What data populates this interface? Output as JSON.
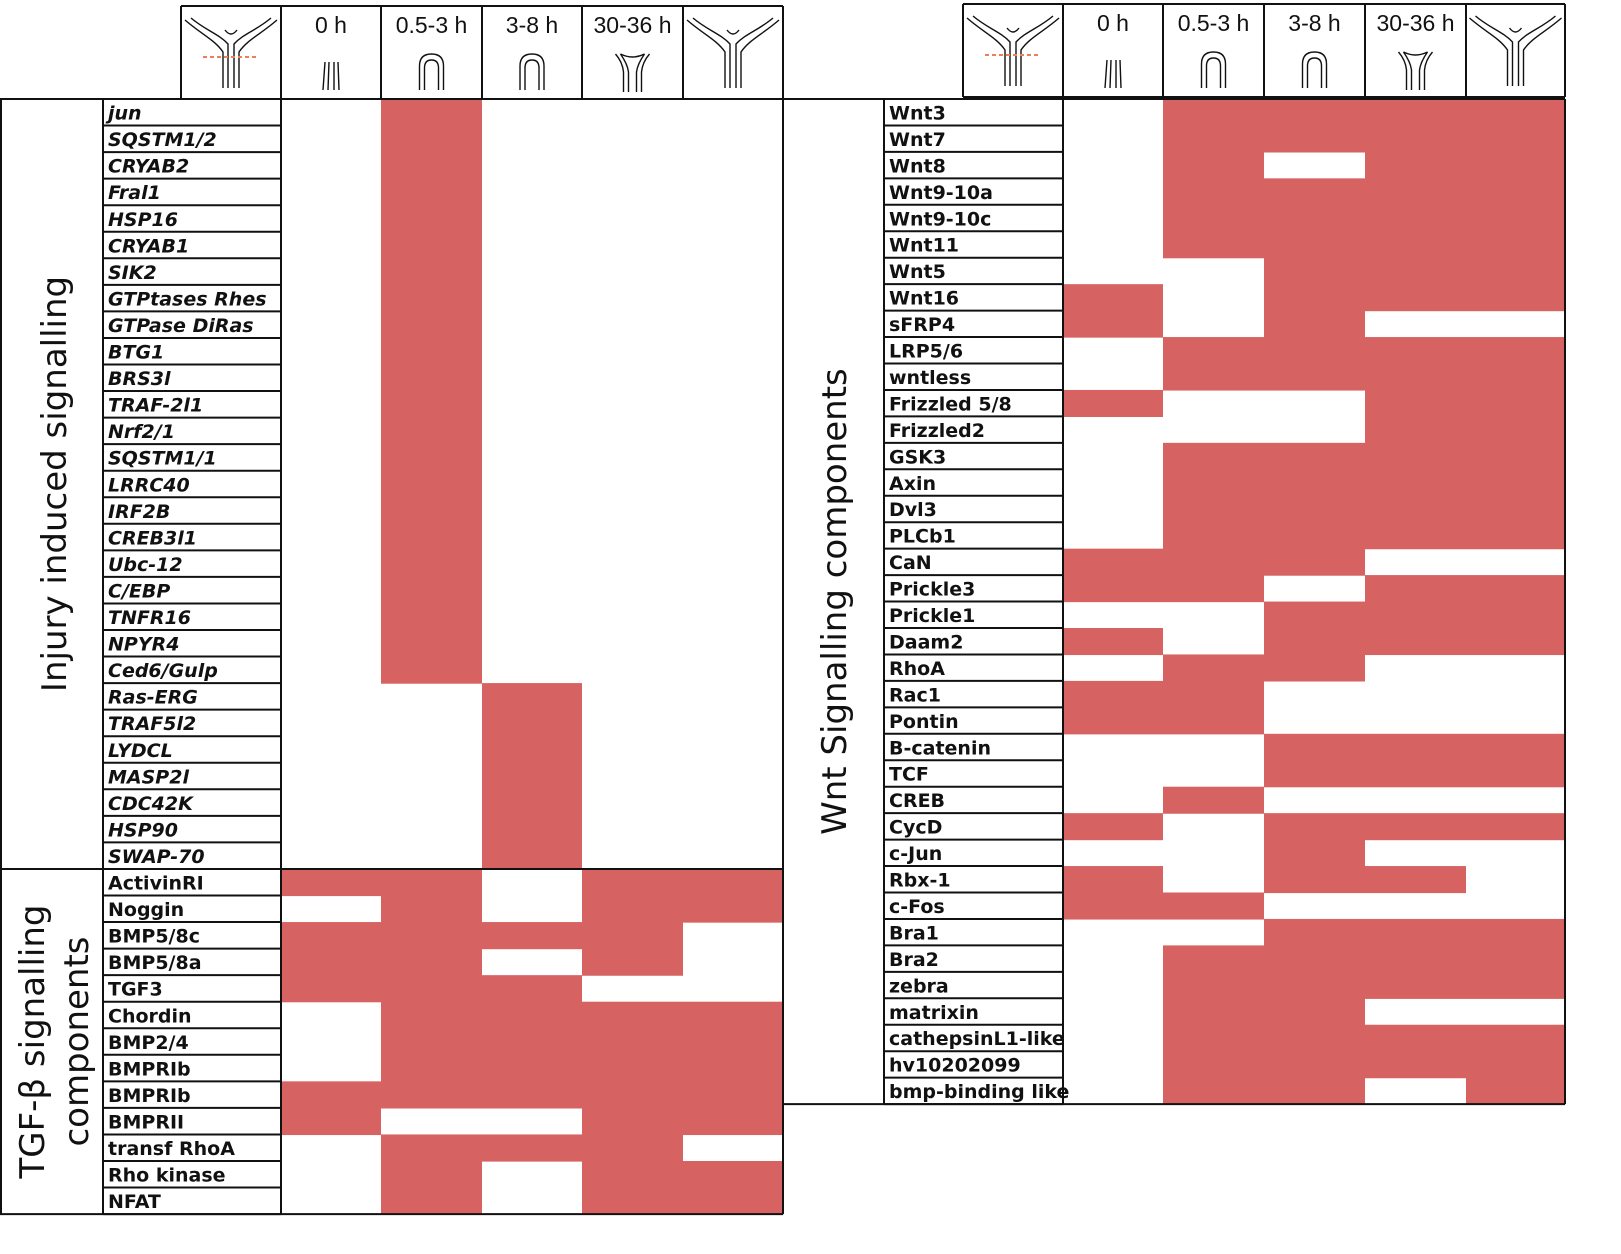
{
  "header": {
    "time_labels": [
      "0 h",
      "0.5-3 h",
      "3-8 h",
      "30-36 h"
    ],
    "icons": [
      "hydra-cut-icon",
      "stalk-0h-icon",
      "healing-tip-icon",
      "tip-regrowth-icon",
      "tentacle-bud-icon",
      "regenerated-hydra-icon"
    ]
  },
  "colors": {
    "expressed": "#d66262",
    "grid": "#111111",
    "cut_line": "#ee7d5a"
  },
  "chart_data": {
    "type": "heatmap",
    "columns": [
      "0 h",
      "0.5-3 h",
      "3-8 h",
      "30-36 h",
      "regenerated"
    ],
    "left_panel": {
      "sections": [
        {
          "title": "Injury induced signalling",
          "italic": true,
          "rows": [
            {
              "gene": "jun",
              "on": [
                0,
                1,
                0,
                0,
                0
              ]
            },
            {
              "gene": "SQSTM1/2",
              "on": [
                0,
                1,
                0,
                0,
                0
              ]
            },
            {
              "gene": "CRYAB2",
              "on": [
                0,
                1,
                0,
                0,
                0
              ]
            },
            {
              "gene": "Fral1",
              "on": [
                0,
                1,
                0,
                0,
                0
              ]
            },
            {
              "gene": "HSP16",
              "on": [
                0,
                1,
                0,
                0,
                0
              ]
            },
            {
              "gene": "CRYAB1",
              "on": [
                0,
                1,
                0,
                0,
                0
              ]
            },
            {
              "gene": "SIK2",
              "on": [
                0,
                1,
                0,
                0,
                0
              ]
            },
            {
              "gene": "GTPtases Rhes",
              "on": [
                0,
                1,
                0,
                0,
                0
              ]
            },
            {
              "gene": "GTPase DiRas",
              "on": [
                0,
                1,
                0,
                0,
                0
              ]
            },
            {
              "gene": "BTG1",
              "on": [
                0,
                1,
                0,
                0,
                0
              ]
            },
            {
              "gene": "BRS3l",
              "on": [
                0,
                1,
                0,
                0,
                0
              ]
            },
            {
              "gene": "TRAF-2l1",
              "on": [
                0,
                1,
                0,
                0,
                0
              ]
            },
            {
              "gene": "Nrf2/1",
              "on": [
                0,
                1,
                0,
                0,
                0
              ]
            },
            {
              "gene": "SQSTM1/1",
              "on": [
                0,
                1,
                0,
                0,
                0
              ]
            },
            {
              "gene": "LRRC40",
              "on": [
                0,
                1,
                0,
                0,
                0
              ]
            },
            {
              "gene": "IRF2B",
              "on": [
                0,
                1,
                0,
                0,
                0
              ]
            },
            {
              "gene": "CREB3l1",
              "on": [
                0,
                1,
                0,
                0,
                0
              ]
            },
            {
              "gene": "Ubc-12",
              "on": [
                0,
                1,
                0,
                0,
                0
              ]
            },
            {
              "gene": "C/EBP",
              "on": [
                0,
                1,
                0,
                0,
                0
              ]
            },
            {
              "gene": "TNFR16",
              "on": [
                0,
                1,
                0,
                0,
                0
              ]
            },
            {
              "gene": "NPYR4",
              "on": [
                0,
                1,
                0,
                0,
                0
              ]
            },
            {
              "gene": "Ced6/Gulp",
              "on": [
                0,
                1,
                0,
                0,
                0
              ]
            },
            {
              "gene": "Ras-ERG",
              "on": [
                0,
                0,
                1,
                0,
                0
              ]
            },
            {
              "gene": "TRAF5l2",
              "on": [
                0,
                0,
                1,
                0,
                0
              ]
            },
            {
              "gene": "LYDCL",
              "on": [
                0,
                0,
                1,
                0,
                0
              ]
            },
            {
              "gene": "MASP2l",
              "on": [
                0,
                0,
                1,
                0,
                0
              ]
            },
            {
              "gene": "CDC42K",
              "on": [
                0,
                0,
                1,
                0,
                0
              ]
            },
            {
              "gene": "HSP90",
              "on": [
                0,
                0,
                1,
                0,
                0
              ]
            },
            {
              "gene": "SWAP-70",
              "on": [
                0,
                0,
                1,
                0,
                0
              ]
            }
          ]
        },
        {
          "title_lines": [
            "TGF-β signalling",
            "components"
          ],
          "italic": false,
          "rows": [
            {
              "gene": "ActivinRI",
              "on": [
                1,
                1,
                0,
                1,
                1
              ]
            },
            {
              "gene": "Noggin",
              "on": [
                0,
                1,
                0,
                1,
                1
              ]
            },
            {
              "gene": "BMP5/8c",
              "on": [
                1,
                1,
                1,
                1,
                0
              ]
            },
            {
              "gene": "BMP5/8a",
              "on": [
                1,
                1,
                0,
                1,
                0
              ]
            },
            {
              "gene": "TGF3",
              "on": [
                1,
                1,
                1,
                0,
                0
              ]
            },
            {
              "gene": "Chordin",
              "on": [
                0,
                1,
                1,
                1,
                1
              ]
            },
            {
              "gene": "BMP2/4",
              "on": [
                0,
                1,
                1,
                1,
                1
              ]
            },
            {
              "gene": "BMPRIb",
              "on": [
                0,
                1,
                1,
                1,
                1
              ]
            },
            {
              "gene": "BMPRIb",
              "on": [
                1,
                1,
                1,
                1,
                1
              ]
            },
            {
              "gene": "BMPRII",
              "on": [
                1,
                0,
                0,
                1,
                1
              ]
            },
            {
              "gene": "transf RhoA",
              "on": [
                0,
                1,
                1,
                1,
                0
              ]
            },
            {
              "gene": "Rho kinase",
              "on": [
                0,
                1,
                0,
                1,
                1
              ]
            },
            {
              "gene": "NFAT",
              "on": [
                0,
                1,
                0,
                1,
                1
              ]
            }
          ]
        }
      ]
    },
    "right_panel": {
      "title": "Wnt Signalling components",
      "rows": [
        {
          "gene": "Wnt3",
          "on": [
            0,
            1,
            1,
            1,
            1
          ]
        },
        {
          "gene": "Wnt7",
          "on": [
            0,
            1,
            1,
            1,
            1
          ]
        },
        {
          "gene": "Wnt8",
          "on": [
            0,
            1,
            0,
            1,
            1
          ]
        },
        {
          "gene": "Wnt9-10a",
          "on": [
            0,
            1,
            1,
            1,
            1
          ]
        },
        {
          "gene": "Wnt9-10c",
          "on": [
            0,
            1,
            1,
            1,
            1
          ]
        },
        {
          "gene": "Wnt11",
          "on": [
            0,
            1,
            1,
            1,
            1
          ]
        },
        {
          "gene": "Wnt5",
          "on": [
            0,
            0,
            1,
            1,
            1
          ]
        },
        {
          "gene": "Wnt16",
          "on": [
            1,
            0,
            1,
            1,
            1
          ]
        },
        {
          "gene": "sFRP4",
          "on": [
            1,
            0,
            1,
            0,
            0
          ]
        },
        {
          "gene": "LRP5/6",
          "on": [
            0,
            1,
            1,
            1,
            1
          ]
        },
        {
          "gene": "wntless",
          "on": [
            0,
            1,
            1,
            1,
            1
          ]
        },
        {
          "gene": "Frizzled 5/8",
          "on": [
            1,
            0,
            0,
            1,
            1
          ]
        },
        {
          "gene": "Frizzled2",
          "on": [
            0,
            0,
            0,
            1,
            1
          ]
        },
        {
          "gene": "GSK3",
          "on": [
            0,
            1,
            1,
            1,
            1
          ]
        },
        {
          "gene": "Axin",
          "on": [
            0,
            1,
            1,
            1,
            1
          ]
        },
        {
          "gene": "Dvl3",
          "on": [
            0,
            1,
            1,
            1,
            1
          ]
        },
        {
          "gene": "PLCb1",
          "on": [
            0,
            1,
            1,
            1,
            1
          ]
        },
        {
          "gene": "CaN",
          "on": [
            1,
            1,
            1,
            0,
            0
          ]
        },
        {
          "gene": "Prickle3",
          "on": [
            1,
            1,
            0,
            1,
            1
          ]
        },
        {
          "gene": "Prickle1",
          "on": [
            0,
            0,
            1,
            1,
            1
          ]
        },
        {
          "gene": "Daam2",
          "on": [
            1,
            0,
            1,
            1,
            1
          ]
        },
        {
          "gene": "RhoA",
          "on": [
            0,
            1,
            1,
            0,
            0
          ]
        },
        {
          "gene": "Rac1",
          "on": [
            1,
            1,
            0,
            0,
            0
          ]
        },
        {
          "gene": "Pontin",
          "on": [
            1,
            1,
            0,
            0,
            0
          ]
        },
        {
          "gene": "B-catenin",
          "on": [
            0,
            0,
            1,
            1,
            1
          ]
        },
        {
          "gene": "TCF",
          "on": [
            0,
            0,
            1,
            1,
            1
          ]
        },
        {
          "gene": "CREB",
          "on": [
            0,
            1,
            0,
            0,
            0
          ]
        },
        {
          "gene": "CycD",
          "on": [
            1,
            0,
            1,
            1,
            1
          ]
        },
        {
          "gene": "c-Jun",
          "on": [
            0,
            0,
            1,
            0,
            0
          ]
        },
        {
          "gene": "Rbx-1",
          "on": [
            1,
            0,
            1,
            1,
            0
          ]
        },
        {
          "gene": "c-Fos",
          "on": [
            1,
            1,
            0,
            0,
            0
          ]
        },
        {
          "gene": "Bra1",
          "on": [
            0,
            0,
            1,
            1,
            1
          ]
        },
        {
          "gene": "Bra2",
          "on": [
            0,
            1,
            1,
            1,
            1
          ]
        },
        {
          "gene": "zebra",
          "on": [
            0,
            1,
            1,
            1,
            1
          ]
        },
        {
          "gene": "matrixin",
          "on": [
            0,
            1,
            1,
            0,
            0
          ]
        },
        {
          "gene": "cathepsinL1-like",
          "on": [
            0,
            1,
            1,
            1,
            1
          ]
        },
        {
          "gene": "hv10202099",
          "on": [
            0,
            1,
            1,
            1,
            1
          ]
        },
        {
          "gene": "bmp-binding like",
          "on": [
            0,
            1,
            1,
            0,
            1
          ]
        }
      ]
    }
  }
}
